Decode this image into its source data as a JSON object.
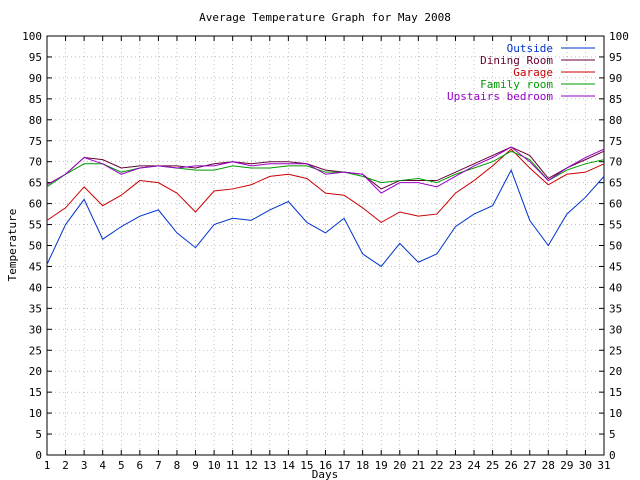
{
  "chart_data": {
    "type": "line",
    "title": "Average Temperature Graph for May 2008",
    "xlabel": "Days",
    "ylabel": "Temperature",
    "xlim": [
      1,
      31
    ],
    "ylim": [
      0,
      100
    ],
    "ytick_step": 5,
    "x": [
      1,
      2,
      3,
      4,
      5,
      6,
      7,
      8,
      9,
      10,
      11,
      12,
      13,
      14,
      15,
      16,
      17,
      18,
      19,
      20,
      21,
      22,
      23,
      24,
      25,
      26,
      27,
      28,
      29,
      30,
      31
    ],
    "grid": true,
    "legend_position": "top-right",
    "series": [
      {
        "name": "Outside",
        "color": "#0033cc",
        "values": [
          45.5,
          55,
          61,
          51.5,
          54.5,
          57,
          58.5,
          53,
          49.5,
          55,
          56.5,
          56,
          58.5,
          60.5,
          55.5,
          53,
          56.5,
          48,
          45,
          50.5,
          46,
          48,
          54.5,
          57.5,
          59.5,
          68,
          56,
          50,
          57.5,
          61.5,
          66.5
        ]
      },
      {
        "name": "Dining Room",
        "color": "#660033",
        "values": [
          64.5,
          67,
          71,
          70.5,
          68.5,
          69,
          69,
          69,
          68.5,
          69.5,
          70,
          69.5,
          70,
          70,
          69.5,
          68,
          67.5,
          67,
          63.5,
          65.5,
          65.5,
          65.5,
          67.5,
          69.5,
          71.5,
          73.5,
          71.5,
          66,
          68.5,
          70.5,
          72.5
        ]
      },
      {
        "name": "Garage",
        "color": "#cc0000",
        "values": [
          56,
          59,
          64,
          59.5,
          62,
          65.5,
          65,
          62.5,
          58,
          63,
          63.5,
          64.5,
          66.5,
          67,
          66,
          62.5,
          62,
          59,
          55.5,
          58,
          57,
          57.5,
          62.5,
          65.5,
          69,
          73,
          68.5,
          64.5,
          67,
          67.5,
          69.5
        ]
      },
      {
        "name": "Family room",
        "color": "#009900",
        "values": [
          64,
          67,
          69.5,
          69.5,
          67.5,
          68.5,
          69,
          68.5,
          68,
          68,
          69,
          68.5,
          68.5,
          69,
          69,
          67.5,
          67.5,
          66.5,
          65,
          65.5,
          66,
          65,
          67,
          68.5,
          70,
          72.5,
          70.5,
          65.5,
          68,
          69.5,
          70.5
        ]
      },
      {
        "name": "Upstairs bedroom",
        "color": "#9900cc",
        "values": [
          64.5,
          67,
          71,
          69.5,
          67,
          68.5,
          69,
          68.5,
          69,
          69,
          70,
          69,
          69.5,
          69.5,
          69.5,
          67,
          67.5,
          67,
          62.5,
          65,
          65,
          64,
          66.5,
          69,
          71,
          73.5,
          70,
          65.5,
          68.5,
          71,
          73
        ]
      }
    ]
  }
}
